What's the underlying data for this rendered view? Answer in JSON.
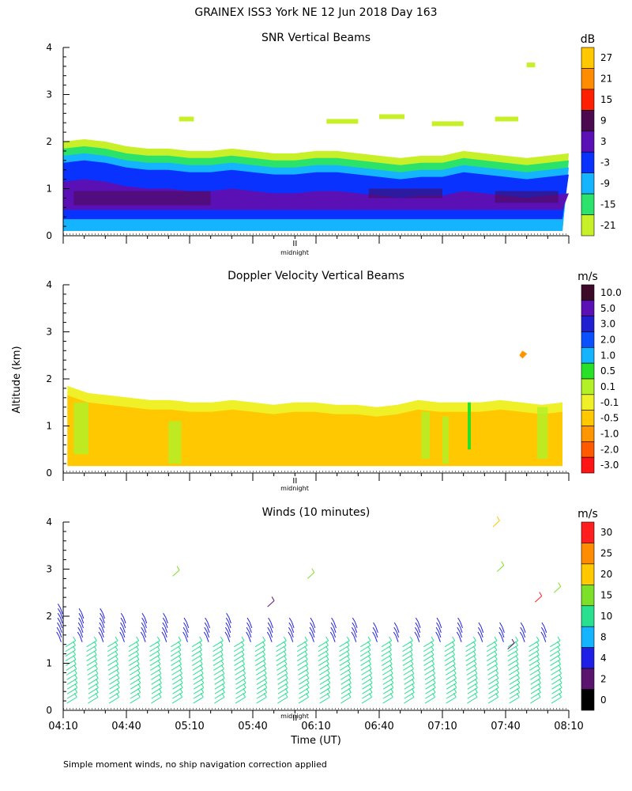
{
  "figure": {
    "title": "GRAINEX ISS3 York NE  12 Jun 2018 Day 163",
    "footnote": "Simple moment winds, no ship navigation correction applied",
    "shared_ylabel": "Altitude (km)",
    "shared_xlabel": "Time (UT)",
    "midnight_label": "midnight"
  },
  "chart_data": [
    {
      "id": "snr",
      "type": "heatmap",
      "title": "SNR Vertical Beams",
      "ylabel": "Altitude (km)",
      "ylim": [
        0,
        4
      ],
      "yticks": [
        0,
        1,
        2,
        3,
        4
      ],
      "xlim_minutes": [
        250,
        490
      ],
      "colorbar_unit": "dB",
      "colorbar_levels": [
        "27",
        "21",
        "15",
        "9",
        "3",
        "-3",
        "-9",
        "-15",
        "-21"
      ],
      "colorbar_colors": [
        "#ffc800",
        "#ff8c00",
        "#ff2000",
        "#4b0a50",
        "#5a10b4",
        "#0a32ff",
        "#14b4ff",
        "#2be36a",
        "#c8f028"
      ],
      "cloud_top_km": [
        2.0,
        2.05,
        2.0,
        1.9,
        1.85,
        1.85,
        1.8,
        1.8,
        1.85,
        1.8,
        1.75,
        1.75,
        1.8,
        1.8,
        1.75,
        1.7,
        1.65,
        1.7,
        1.7,
        1.8,
        1.75,
        1.7,
        1.65,
        1.7,
        1.75
      ],
      "layers": [
        {
          "level": "-21",
          "from": 0.1,
          "to_offset": 0.0
        },
        {
          "level": "-15",
          "from": 0.1,
          "to_offset": -0.15
        },
        {
          "level": "-9",
          "from": 0.1,
          "to_offset": -0.3
        },
        {
          "level": "-3",
          "from": 0.35,
          "to_offset": -0.45
        },
        {
          "level": "3",
          "from": 0.55,
          "to_offset": -0.85
        }
      ]
    },
    {
      "id": "doppler",
      "type": "heatmap",
      "title": "Doppler Velocity Vertical Beams",
      "ylabel": "Altitude (km)",
      "ylim": [
        0,
        4
      ],
      "yticks": [
        0,
        1,
        2,
        3,
        4
      ],
      "xlim_minutes": [
        250,
        490
      ],
      "colorbar_unit": "m/s",
      "colorbar_levels": [
        "10.0",
        "5.0",
        "3.0",
        "2.0",
        "1.0",
        "0.5",
        "0.1",
        "-0.1",
        "-0.5",
        "-1.0",
        "-2.0",
        "-3.0"
      ],
      "colorbar_colors": [
        "#3c0a28",
        "#5a10b4",
        "#2020d0",
        "#0a50ff",
        "#14b4ff",
        "#28e028",
        "#b4f028",
        "#f0f028",
        "#ffc800",
        "#ff9600",
        "#ff5a00",
        "#ff1414"
      ],
      "echo_top_km": [
        1.85,
        1.7,
        1.65,
        1.6,
        1.55,
        1.55,
        1.5,
        1.5,
        1.55,
        1.5,
        1.45,
        1.5,
        1.5,
        1.45,
        1.45,
        1.4,
        1.45,
        1.55,
        1.5,
        1.5,
        1.5,
        1.55,
        1.5,
        1.45,
        1.5
      ],
      "dominant_level": "-0.5",
      "secondary_level": "-0.1"
    },
    {
      "id": "winds",
      "type": "scatter",
      "title": "Winds (10 minutes)",
      "ylabel": "Altitude (km)",
      "xlabel": "Time (UT)",
      "ylim": [
        0,
        4
      ],
      "yticks": [
        0,
        1,
        2,
        3,
        4
      ],
      "xlim_minutes": [
        250,
        490
      ],
      "xticks": [
        {
          "minute": 250,
          "label": "04:10"
        },
        {
          "minute": 280,
          "label": "04:40"
        },
        {
          "minute": 310,
          "label": "05:10"
        },
        {
          "minute": 340,
          "label": "05:40"
        },
        {
          "minute": 370,
          "label": "06:10"
        },
        {
          "minute": 400,
          "label": "06:40"
        },
        {
          "minute": 430,
          "label": "07:10"
        },
        {
          "minute": 460,
          "label": "07:40"
        },
        {
          "minute": 490,
          "label": "08:10"
        }
      ],
      "colorbar_unit": "m/s",
      "colorbar_levels": [
        "30",
        "25",
        "20",
        "15",
        "10",
        "8",
        "4",
        "2",
        "0"
      ],
      "colorbar_colors": [
        "#ff1e1e",
        "#ff8c00",
        "#ffc800",
        "#7ce028",
        "#28e090",
        "#14b4ff",
        "#1e1ee6",
        "#5a146e",
        "#000000"
      ],
      "profile_times_min": [
        250,
        260,
        270,
        280,
        290,
        300,
        310,
        320,
        330,
        340,
        350,
        360,
        370,
        380,
        390,
        400,
        410,
        420,
        430,
        440,
        450,
        460,
        470,
        480
      ],
      "profile_top_km": [
        2.1,
        2.0,
        2.0,
        1.95,
        1.9,
        1.9,
        1.85,
        1.85,
        1.9,
        1.85,
        1.8,
        1.85,
        1.8,
        1.8,
        1.8,
        1.75,
        1.75,
        1.8,
        1.8,
        1.8,
        1.75,
        1.7,
        1.7,
        1.7
      ],
      "speed_by_height": [
        {
          "from_km": 0.1,
          "to_km": 0.8,
          "speed_ms": 12
        },
        {
          "from_km": 0.8,
          "to_km": 1.4,
          "speed_ms": 10
        },
        {
          "from_km": 1.4,
          "to_km": 2.2,
          "speed_ms": 5
        }
      ],
      "isolated_barbs": [
        {
          "minute": 302,
          "km": 2.85,
          "speed_ms": 16
        },
        {
          "minute": 347,
          "km": 2.2,
          "speed_ms": 3
        },
        {
          "minute": 366,
          "km": 2.8,
          "speed_ms": 16
        },
        {
          "minute": 454,
          "km": 3.9,
          "speed_ms": 22
        },
        {
          "minute": 456,
          "km": 2.95,
          "speed_ms": 15
        },
        {
          "minute": 474,
          "km": 2.3,
          "speed_ms": 30
        },
        {
          "minute": 483,
          "km": 2.5,
          "speed_ms": 18
        },
        {
          "minute": 461,
          "km": 1.3,
          "speed_ms": 3
        }
      ]
    }
  ]
}
